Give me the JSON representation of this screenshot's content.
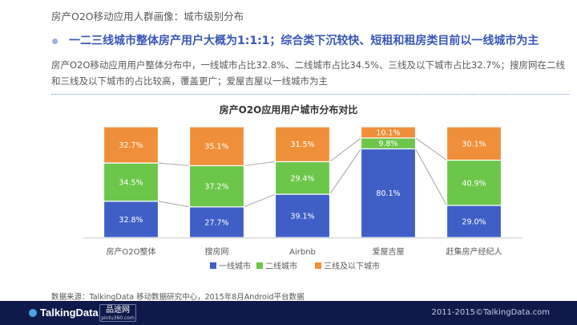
{
  "header": {
    "page_title": "房产O2O移动应用人群画像：城市级别分布",
    "headline": "一二三线城市整体房产用户大概为1:1:1；综合类下沉较快、短租和租房类目前以一线城市为主",
    "description": "房产O2O移动应用用户整体分布中，一线城市占比32.8%、二线城市占比34.5%、三线及以下城市占比32.7%；搜房网在二线和三线及以下城市的占比较高，覆盖更广；爱屋吉屋以一线城市为主"
  },
  "chart_data": {
    "type": "bar",
    "stacked": true,
    "title": "房产O2O应用用户城市分布对比",
    "categories": [
      "房产O2O整体",
      "搜房网",
      "Airbnb",
      "爱屋吉屋",
      "赶集房产经纪人"
    ],
    "series": [
      {
        "name": "一线城市",
        "color": "#3f5fc6",
        "values": [
          32.8,
          27.7,
          39.1,
          80.1,
          29.0
        ],
        "labels": [
          "32.8%",
          "27.7%",
          "39.1%",
          "80.1%",
          "29.0%"
        ]
      },
      {
        "name": "二线城市",
        "color": "#6cc64a",
        "values": [
          34.5,
          37.2,
          29.4,
          9.8,
          40.9
        ],
        "labels": [
          "34.5%",
          "37.2%",
          "29.4%",
          "9.8%",
          "40.9%"
        ]
      },
      {
        "name": "三线及以下城市",
        "color": "#f08f3a",
        "values": [
          32.7,
          35.1,
          31.5,
          10.1,
          30.1
        ],
        "labels": [
          "32.7%",
          "35.1%",
          "31.5%",
          "10.1%",
          "30.1%"
        ]
      }
    ],
    "ylim": [
      0,
      100
    ],
    "legend_position": "bottom",
    "connector_lines": true
  },
  "footer": {
    "source": "数据来源：TalkingData 移动数据研究中心，2015年8月Android平台数据",
    "logo_text": "TalkingData",
    "partner_text": "品途网",
    "partner_subtext": "pintu360.com",
    "copyright": "2011-2015©TalkingData.com"
  }
}
